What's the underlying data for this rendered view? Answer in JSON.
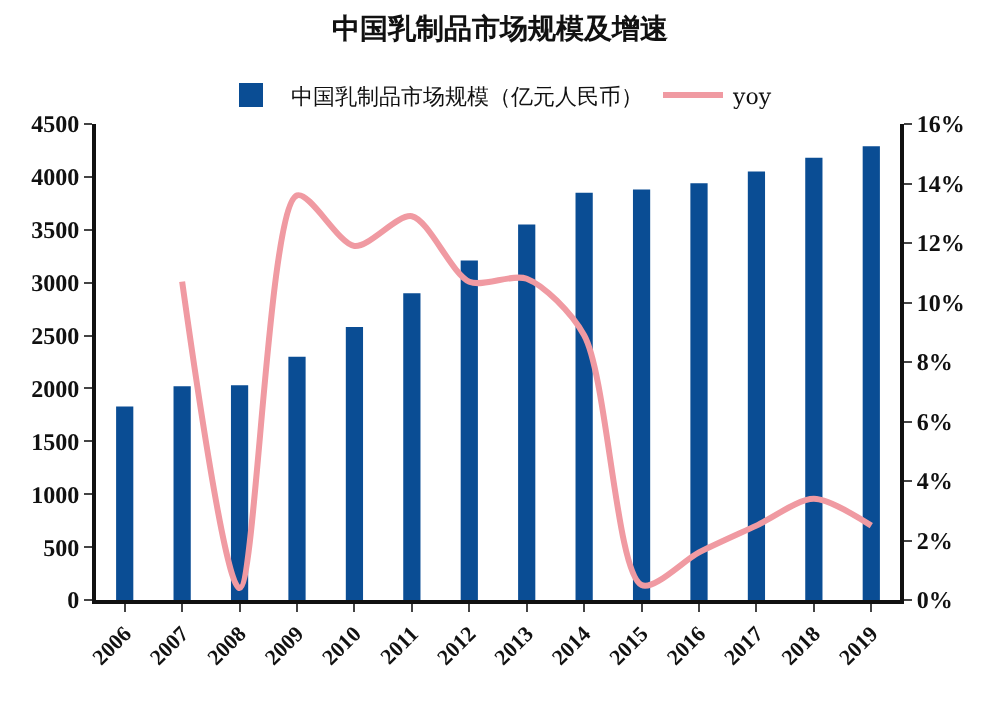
{
  "chart_data": {
    "type": "bar",
    "title": "中国乳制品市场规模及增速",
    "categories": [
      "2006",
      "2007",
      "2008",
      "2009",
      "2010",
      "2011",
      "2012",
      "2013",
      "2014",
      "2015",
      "2016",
      "2017",
      "2018",
      "2019"
    ],
    "series": [
      {
        "name": "中国乳制品市场规模（亿元人民币）",
        "color": "#0a4d94",
        "values": [
          1830,
          2020,
          2030,
          2300,
          2580,
          2900,
          3210,
          3550,
          3850,
          3880,
          3940,
          4050,
          4180,
          4290
        ]
      },
      {
        "name": "yoy",
        "type": "line",
        "axis": "y2",
        "color": "#f09aa2",
        "values": [
          null,
          10.7,
          0.4,
          13.6,
          11.9,
          12.9,
          10.7,
          10.8,
          8.9,
          0.5,
          1.6,
          2.5,
          3.4,
          2.5
        ]
      }
    ],
    "ylim": [
      0,
      4500
    ],
    "yticks": [
      0,
      500,
      1000,
      1500,
      2000,
      2500,
      3000,
      3500,
      4000,
      4500
    ],
    "y2lim": [
      0,
      16
    ],
    "y2ticks": [
      {
        "value": 0,
        "label": "0%"
      },
      {
        "value": 2,
        "label": "2%"
      },
      {
        "value": 4,
        "label": "4%"
      },
      {
        "value": 6,
        "label": "6%"
      },
      {
        "value": 8,
        "label": "8%"
      },
      {
        "value": 10,
        "label": "10%"
      },
      {
        "value": 12,
        "label": "12%"
      },
      {
        "value": 14,
        "label": "14%"
      },
      {
        "value": 16,
        "label": "16%"
      }
    ],
    "grid": false,
    "legend": "top",
    "marker": "none",
    "line_style": "solid"
  }
}
